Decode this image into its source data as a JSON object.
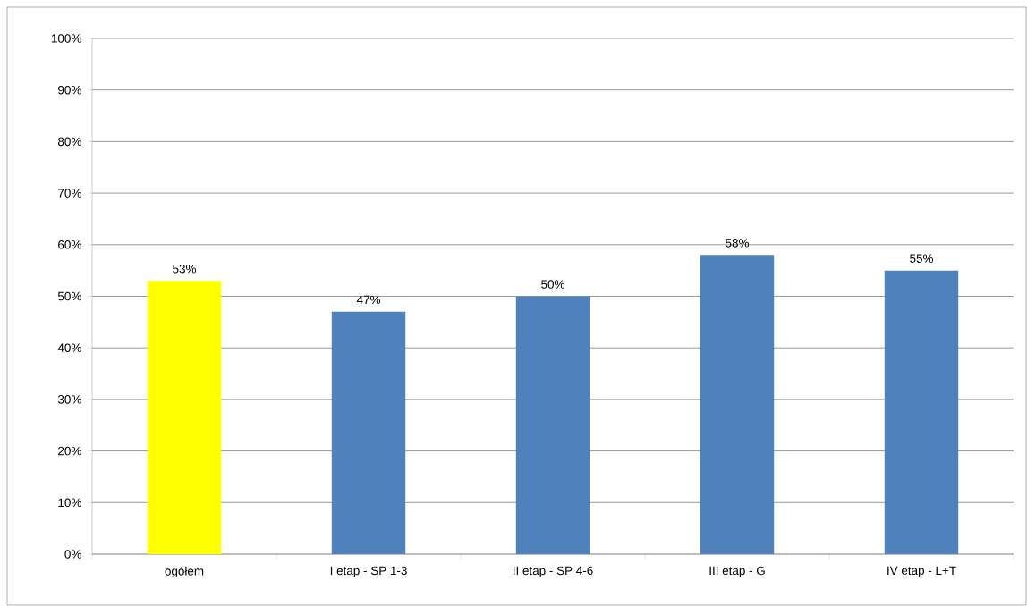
{
  "chart_data": {
    "type": "bar",
    "categories": [
      "ogółem",
      "I etap - SP 1-3",
      "II etap - SP 4-6",
      "III etap - G",
      "IV etap - L+T"
    ],
    "values": [
      53,
      47,
      50,
      58,
      55
    ],
    "colors": [
      "#ffff00",
      "#4f81bd",
      "#4f81bd",
      "#4f81bd",
      "#4f81bd"
    ],
    "value_labels": [
      "53%",
      "47%",
      "50%",
      "58%",
      "55%"
    ],
    "ylim": [
      0,
      100
    ],
    "yticks": [
      {
        "value": 0,
        "label": "0%"
      },
      {
        "value": 10,
        "label": "10%"
      },
      {
        "value": 20,
        "label": "20%"
      },
      {
        "value": 30,
        "label": "30%"
      },
      {
        "value": 40,
        "label": "40%"
      },
      {
        "value": 50,
        "label": "50%"
      },
      {
        "value": 60,
        "label": "60%"
      },
      {
        "value": 70,
        "label": "70%"
      },
      {
        "value": 80,
        "label": "80%"
      },
      {
        "value": 90,
        "label": "90%"
      },
      {
        "value": 100,
        "label": "100%"
      }
    ],
    "grid": "y"
  }
}
